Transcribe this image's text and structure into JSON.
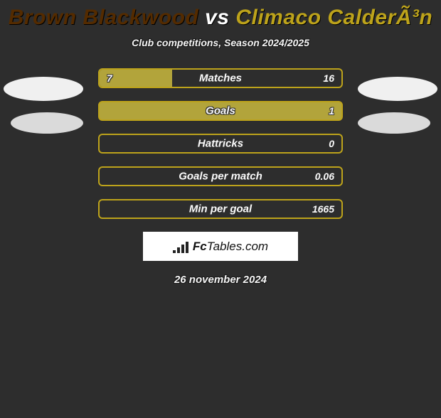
{
  "title": {
    "player1": "Brown Blackwood",
    "vs": " vs ",
    "player2": "Climaco CalderÃ³n",
    "color1": "#542b00",
    "colorVs": "#ffffff",
    "color2": "#bda31b",
    "shadow": "1px 1px 0 #000000"
  },
  "subtitle": "Club competitions, Season 2024/2025",
  "chart": {
    "bar_border_color": "#bda31b",
    "fill_color": "#b2a43b",
    "row_bg": "transparent",
    "rows": [
      {
        "label": "Matches",
        "left": "7",
        "right": "16",
        "left_pct": 30
      },
      {
        "label": "Goals",
        "left": "",
        "right": "1",
        "left_pct": 100
      },
      {
        "label": "Hattricks",
        "left": "",
        "right": "0",
        "left_pct": 0
      },
      {
        "label": "Goals per match",
        "left": "",
        "right": "0.06",
        "left_pct": 0
      },
      {
        "label": "Min per goal",
        "left": "",
        "right": "1665",
        "left_pct": 0
      }
    ]
  },
  "logo": {
    "brand_bold": "Fc",
    "brand_rest": "Tables.com"
  },
  "date": "26 november 2024",
  "background_color": "#2d2d2d"
}
